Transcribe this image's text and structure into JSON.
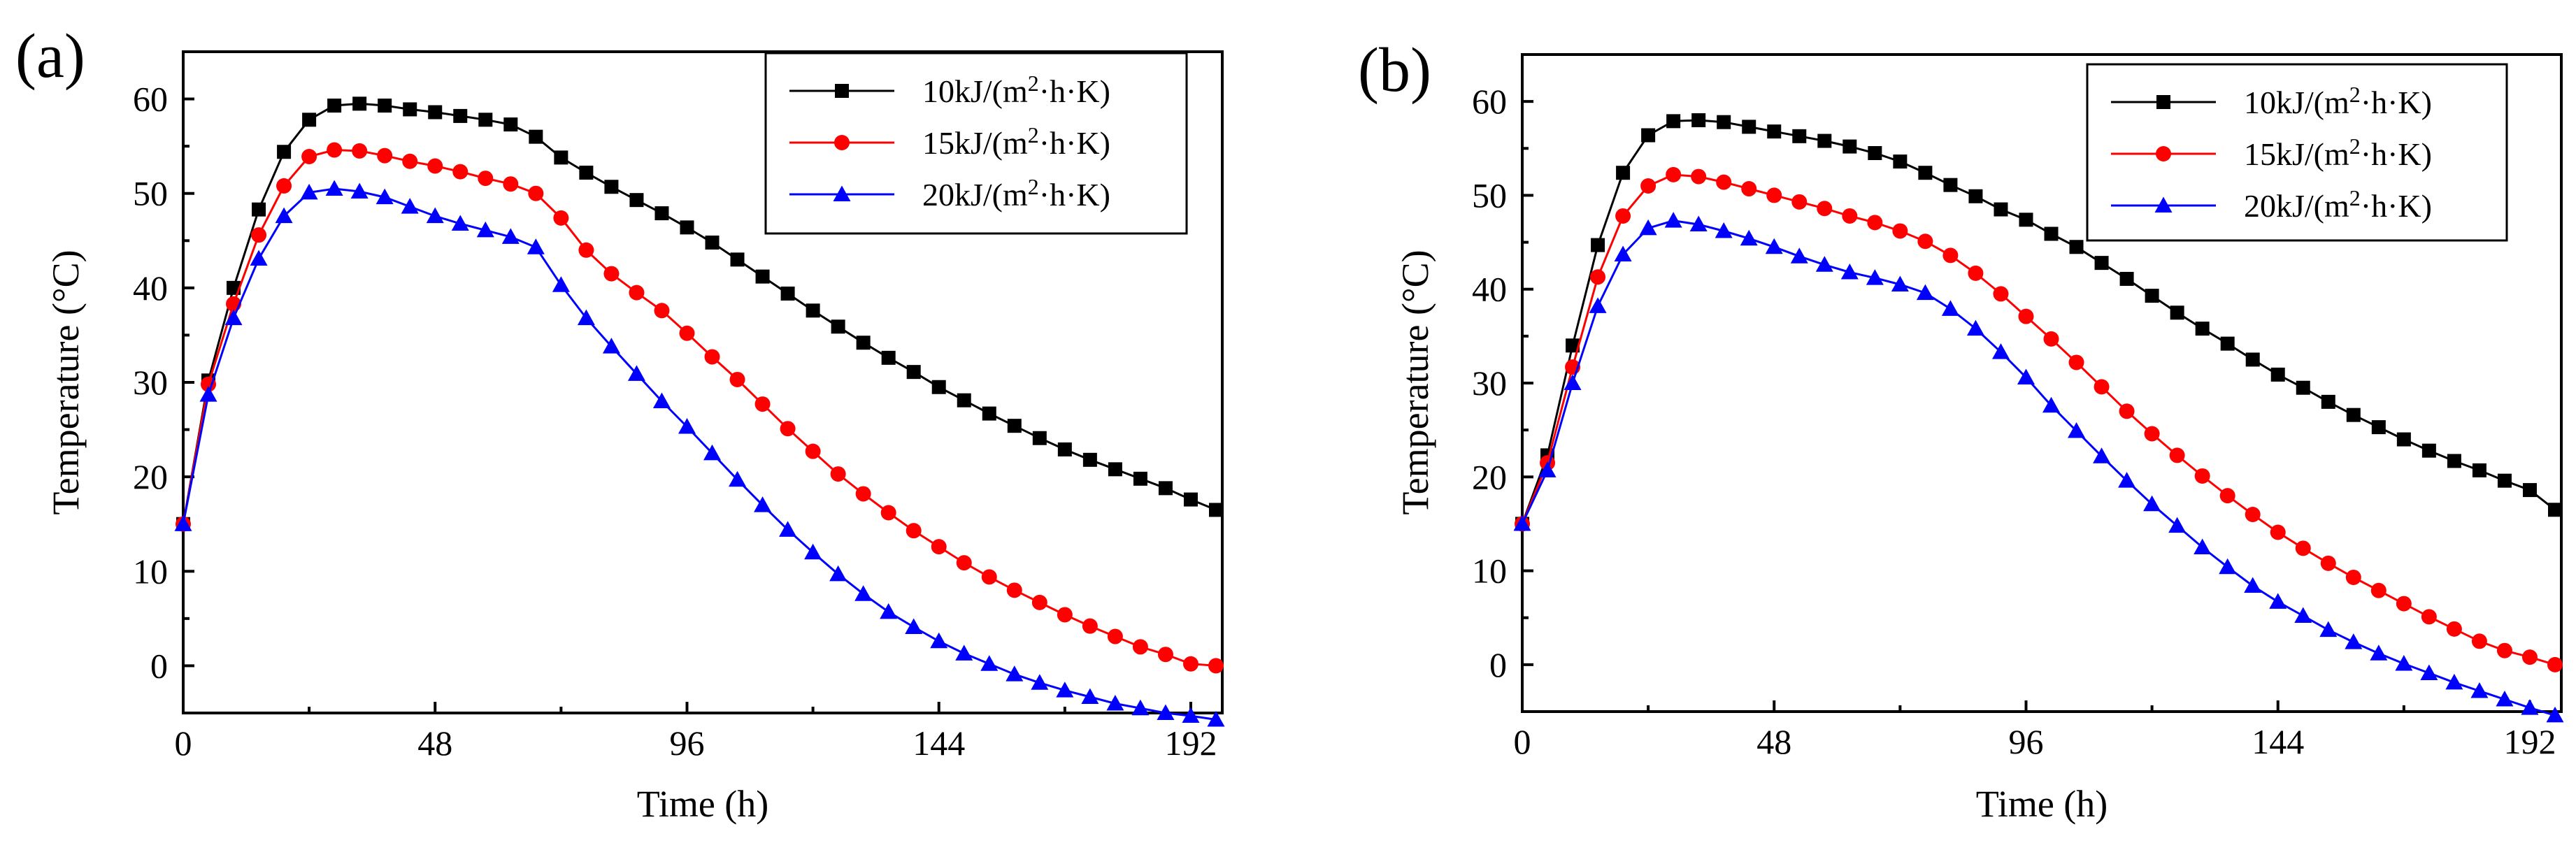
{
  "colors": {
    "series_10": "#000000",
    "series_15": "#ff0000",
    "series_20": "#0000ff"
  },
  "chart_data": [
    {
      "type": "line",
      "panel_label": "(a)",
      "xlabel": "Time (h)",
      "ylabel": "Temperature (°C)",
      "xlim": [
        0,
        198
      ],
      "ylim": [
        -5,
        65
      ],
      "xticks": [
        0,
        48,
        96,
        144,
        192
      ],
      "yticks": [
        0,
        10,
        20,
        30,
        40,
        50,
        60
      ],
      "legend_position": "top-right",
      "x": [
        0,
        4.8,
        9.6,
        14.4,
        19.2,
        24,
        28.8,
        33.6,
        38.4,
        43.2,
        48,
        52.8,
        57.6,
        62.4,
        67.2,
        72,
        76.8,
        81.6,
        86.4,
        91.2,
        96,
        100.8,
        105.6,
        110.4,
        115.2,
        120,
        124.8,
        129.6,
        134.4,
        139.2,
        144,
        148.8,
        153.6,
        158.4,
        163.2,
        168,
        172.8,
        177.6,
        182.4,
        187.2,
        192,
        196.8
      ],
      "series": [
        {
          "name": "10kJ/(m2·h·K)",
          "marker": "square",
          "color": "#000000",
          "values": [
            15,
            30.2,
            40,
            48.3,
            54.4,
            57.8,
            59.3,
            59.5,
            59.3,
            58.9,
            58.6,
            58.2,
            57.8,
            57.3,
            56,
            53.8,
            52.2,
            50.7,
            49.3,
            47.9,
            46.4,
            44.8,
            43,
            41.2,
            39.4,
            37.6,
            35.9,
            34.2,
            32.6,
            31.1,
            29.5,
            28.1,
            26.7,
            25.4,
            24.1,
            22.9,
            21.8,
            20.8,
            19.8,
            18.8,
            17.6,
            16.5
          ]
        },
        {
          "name": "15kJ/(m2·h·K)",
          "marker": "circle",
          "color": "#ff0000",
          "values": [
            15,
            29.8,
            38.3,
            45.6,
            50.8,
            53.9,
            54.6,
            54.5,
            54,
            53.4,
            52.9,
            52.3,
            51.6,
            51,
            50,
            47.4,
            44,
            41.5,
            39.5,
            37.6,
            35.2,
            32.7,
            30.3,
            27.7,
            25.1,
            22.7,
            20.3,
            18.2,
            16.2,
            14.3,
            12.6,
            10.9,
            9.4,
            8,
            6.7,
            5.4,
            4.2,
            3.1,
            2,
            1.2,
            0.2,
            0
          ]
        },
        {
          "name": "20kJ/(m2·h·K)",
          "marker": "triangle",
          "color": "#0000ff",
          "values": [
            15,
            28.7,
            36.8,
            43.1,
            47.6,
            50.1,
            50.5,
            50.2,
            49.6,
            48.6,
            47.6,
            46.8,
            46.1,
            45.4,
            44.3,
            40.3,
            36.8,
            33.8,
            30.9,
            28,
            25.3,
            22.5,
            19.7,
            17,
            14.4,
            12,
            9.7,
            7.6,
            5.7,
            4.1,
            2.6,
            1.3,
            0.2,
            -0.9,
            -1.8,
            -2.6,
            -3.3,
            -4,
            -4.5,
            -5,
            -5.3,
            -5.7
          ]
        }
      ]
    },
    {
      "type": "line",
      "panel_label": "(b)",
      "xlabel": "Time (h)",
      "ylabel": "Temperature (°C)",
      "xlim": [
        0,
        198
      ],
      "ylim": [
        -5,
        65
      ],
      "xticks": [
        0,
        48,
        96,
        144,
        192
      ],
      "yticks": [
        0,
        10,
        20,
        30,
        40,
        50,
        60
      ],
      "legend_position": "top-right",
      "x": [
        0,
        4.8,
        9.6,
        14.4,
        19.2,
        24,
        28.8,
        33.6,
        38.4,
        43.2,
        48,
        52.8,
        57.6,
        62.4,
        67.2,
        72,
        76.8,
        81.6,
        86.4,
        91.2,
        96,
        100.8,
        105.6,
        110.4,
        115.2,
        120,
        124.8,
        129.6,
        134.4,
        139.2,
        144,
        148.8,
        153.6,
        158.4,
        163.2,
        168,
        172.8,
        177.6,
        182.4,
        187.2,
        192,
        196.8
      ],
      "series": [
        {
          "name": "10kJ/(m2·h·K)",
          "marker": "square",
          "color": "#000000",
          "values": [
            15,
            22.3,
            34,
            44.7,
            52.4,
            56.4,
            57.9,
            58,
            57.8,
            57.3,
            56.8,
            56.3,
            55.8,
            55.2,
            54.5,
            53.6,
            52.4,
            51.1,
            49.9,
            48.5,
            47.4,
            45.9,
            44.5,
            42.8,
            41.1,
            39.3,
            37.5,
            35.8,
            34.2,
            32.5,
            30.9,
            29.5,
            28,
            26.6,
            25.3,
            24,
            22.8,
            21.7,
            20.7,
            19.6,
            18.6,
            16.5
          ]
        },
        {
          "name": "15kJ/(m2·h·K)",
          "marker": "circle",
          "color": "#ff0000",
          "values": [
            15,
            21.5,
            31.7,
            41.3,
            47.8,
            51,
            52.2,
            52,
            51.4,
            50.7,
            50,
            49.3,
            48.6,
            47.8,
            47.1,
            46.2,
            45.1,
            43.6,
            41.7,
            39.5,
            37.1,
            34.7,
            32.2,
            29.6,
            27,
            24.6,
            22.3,
            20.1,
            18,
            16,
            14.1,
            12.4,
            10.8,
            9.3,
            7.9,
            6.5,
            5.1,
            3.8,
            2.5,
            1.5,
            0.8,
            0
          ]
        },
        {
          "name": "20kJ/(m2·h·K)",
          "marker": "triangle",
          "color": "#0000ff",
          "values": [
            15,
            20.7,
            30,
            38.2,
            43.7,
            46.5,
            47.3,
            46.9,
            46.2,
            45.4,
            44.5,
            43.5,
            42.6,
            41.8,
            41.2,
            40.5,
            39.6,
            37.9,
            35.8,
            33.3,
            30.6,
            27.6,
            24.9,
            22.2,
            19.6,
            17.1,
            14.8,
            12.5,
            10.4,
            8.4,
            6.7,
            5.2,
            3.7,
            2.4,
            1.2,
            0.1,
            -0.9,
            -1.9,
            -2.8,
            -3.7,
            -4.6,
            -5.4
          ]
        }
      ]
    }
  ]
}
